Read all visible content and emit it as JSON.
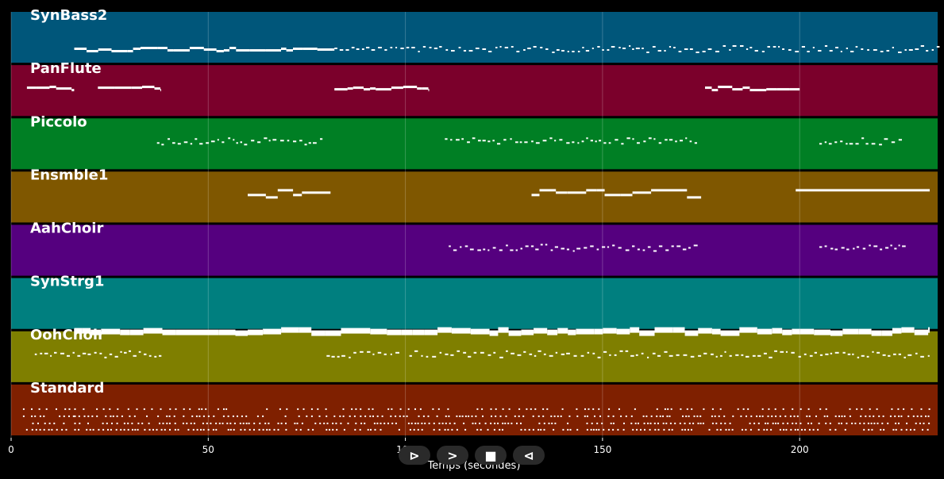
{
  "chart_data": {
    "type": "piano-roll",
    "title": "",
    "xlabel": "Temps (secondes)",
    "xlim": [
      0,
      235
    ],
    "xticks": [
      0,
      50,
      100,
      150,
      200
    ],
    "grid": true,
    "tracks": [
      {
        "name": "SynBass2",
        "color": "#00567a",
        "segments": [
          [
            16,
            82,
            "legato",
            "low"
          ],
          [
            82,
            235,
            "dots",
            "low"
          ]
        ]
      },
      {
        "name": "PanFlute",
        "color": "#7b002b",
        "segments": [
          [
            4,
            16,
            "legato",
            "mid"
          ],
          [
            22,
            38,
            "legato",
            "mid"
          ],
          [
            82,
            106,
            "legato",
            "mid"
          ],
          [
            176,
            200,
            "legato",
            "mid"
          ]
        ]
      },
      {
        "name": "Piccolo",
        "color": "#007f24",
        "segments": [
          [
            37,
            79,
            "dots",
            "mid"
          ],
          [
            110,
            174,
            "dots",
            "mid"
          ],
          [
            205,
            226,
            "dots",
            "mid"
          ]
        ]
      },
      {
        "name": "Ensmble1",
        "color": "#7f5700",
        "segments": [
          [
            60,
            81,
            "steps",
            "mid"
          ],
          [
            132,
            175,
            "steps",
            "mid"
          ],
          [
            199,
            233,
            "flat",
            "mid"
          ]
        ]
      },
      {
        "name": "AahChoir",
        "color": "#55007f",
        "segments": [
          [
            111,
            174,
            "dots",
            "mid"
          ],
          [
            205,
            226,
            "dots",
            "mid"
          ]
        ]
      },
      {
        "name": "SynStrg1",
        "color": "#007f7f",
        "segments": [
          [
            16,
            200,
            "thick",
            "mid"
          ],
          [
            200,
            233,
            "thick",
            "mid"
          ]
        ]
      },
      {
        "name": "OohChoir",
        "color": "#7f7f00",
        "segments": [
          [
            6,
            38,
            "dots",
            "mid"
          ],
          [
            80,
            98,
            "dots",
            "mid"
          ],
          [
            101,
            233,
            "dots",
            "mid"
          ]
        ]
      },
      {
        "name": "Standard",
        "color": "#7f2000",
        "segments": [
          [
            3,
            16,
            "drums",
            "mid"
          ],
          [
            16,
            233,
            "drums",
            "mid"
          ]
        ]
      }
    ]
  },
  "toolbar": {
    "play_label": "⊳",
    "forward_label": ">",
    "stop_label": "■",
    "back_label": "⊲"
  }
}
